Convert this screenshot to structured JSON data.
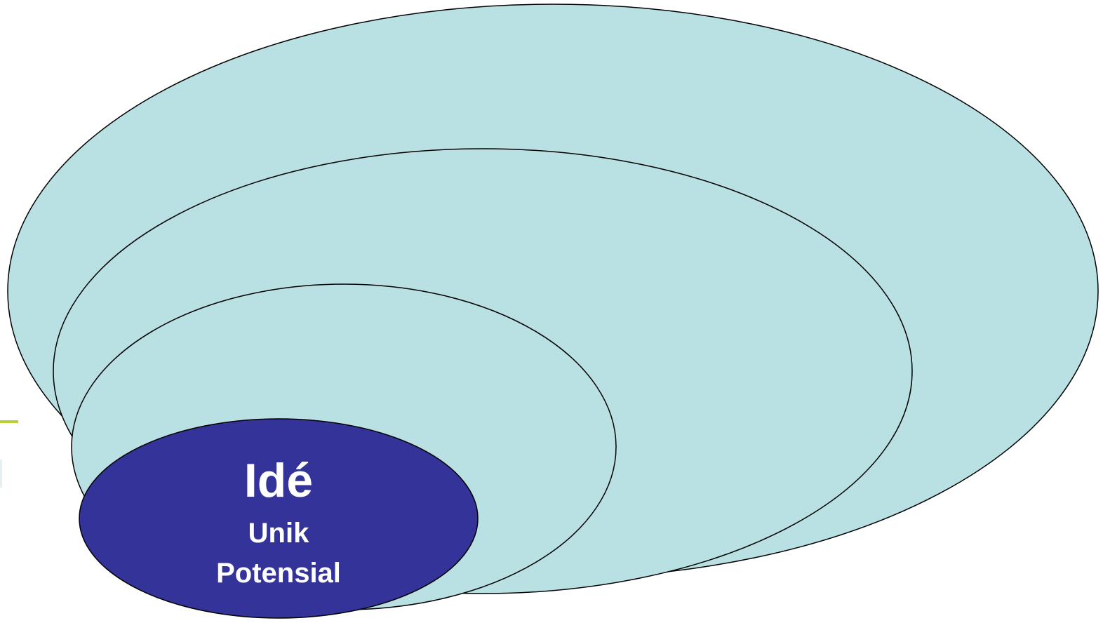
{
  "diagram": {
    "inner_label": {
      "title": "Idé",
      "line1": "Unik",
      "line2": "Potensial"
    }
  },
  "colors": {
    "outer_fill": "#b9e0e3",
    "inner_fill": "#333399",
    "stroke": "#000000",
    "inner_text": "#ffffff",
    "accent": "#b5d335"
  }
}
